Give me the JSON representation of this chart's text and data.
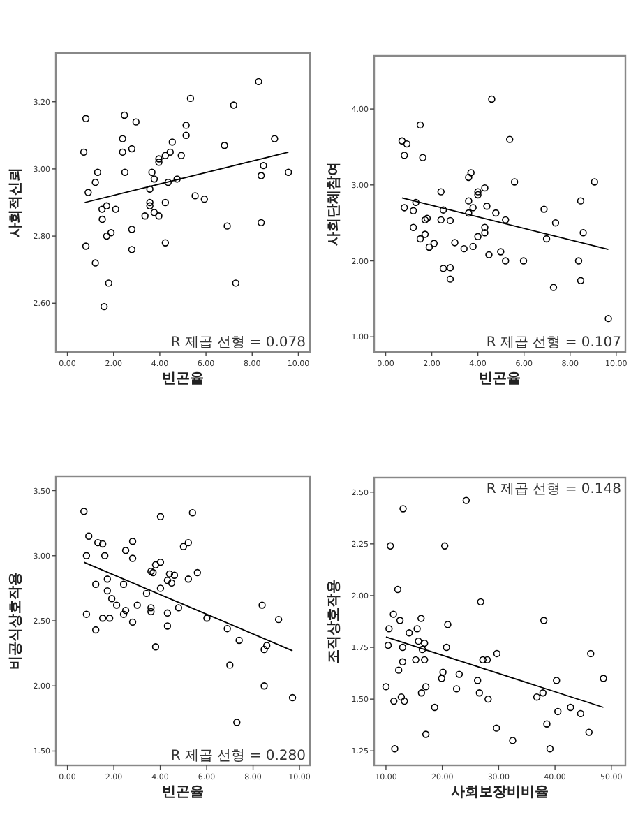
{
  "chart_data": [
    {
      "type": "scatter",
      "xlabel": "빈곤율",
      "ylabel": "사회적신뢰",
      "xlim": [
        -0.5,
        10.5
      ],
      "ylim": [
        2.455,
        3.345
      ],
      "xticks": [
        {
          "value": 0,
          "label": "0.00"
        },
        {
          "value": 2,
          "label": "2.00"
        },
        {
          "value": 4,
          "label": "4.00"
        },
        {
          "value": 6,
          "label": "6.00"
        },
        {
          "value": 8,
          "label": "8.00"
        },
        {
          "value": 10,
          "label": "10.00"
        }
      ],
      "yticks": [
        {
          "value": 2.6,
          "label": "2.60"
        },
        {
          "value": 2.8,
          "label": "2.80"
        },
        {
          "value": 3.0,
          "label": "3.00"
        },
        {
          "value": 3.2,
          "label": "3.20"
        }
      ],
      "annotations": [
        "R 제곱 선형 = 0.078"
      ],
      "series": [
        {
          "marker": "circle",
          "color": "#000000",
          "x": [
            0.8,
            0.71,
            0.9,
            0.8,
            1.21,
            1.31,
            1.21,
            1.5,
            1.51,
            1.7,
            1.7,
            1.89,
            1.79,
            1.59,
            2.09,
            2.47,
            2.39,
            2.39,
            2.49,
            2.79,
            2.97,
            2.79,
            2.79,
            3.36,
            3.57,
            3.57,
            3.57,
            3.66,
            3.76,
            3.76,
            3.96,
            3.96,
            3.96,
            4.24,
            4.24,
            4.24,
            4.36,
            4.45,
            4.54,
            4.75,
            4.93,
            5.14,
            5.14,
            5.33,
            5.53,
            5.93,
            6.8,
            6.92,
            7.2,
            7.29,
            8.28,
            8.39,
            8.39,
            8.49,
            8.97,
            9.57
          ],
          "values": [
            3.15,
            3.05,
            2.93,
            2.77,
            2.72,
            2.99,
            2.96,
            2.88,
            2.85,
            2.89,
            2.8,
            2.81,
            2.66,
            2.59,
            2.88,
            3.16,
            3.09,
            3.05,
            2.99,
            3.06,
            3.14,
            2.82,
            2.76,
            2.86,
            2.94,
            2.9,
            2.89,
            2.99,
            2.97,
            2.87,
            3.03,
            3.02,
            2.86,
            3.04,
            2.9,
            2.78,
            2.96,
            3.05,
            3.08,
            2.97,
            3.04,
            3.13,
            3.1,
            3.21,
            2.92,
            2.91,
            3.07,
            2.83,
            3.19,
            2.66,
            3.26,
            2.98,
            2.84,
            3.01,
            3.09,
            2.99
          ]
        },
        {
          "type": "line",
          "color": "#000000",
          "x": [
            0.75,
            9.57
          ],
          "values": [
            2.9,
            3.05
          ]
        }
      ]
    },
    {
      "type": "scatter",
      "xlabel": "빈곤율",
      "ylabel": "사회단체참여",
      "xlim": [
        -0.5,
        10.4
      ],
      "ylim": [
        0.8,
        4.7
      ],
      "xticks": [
        {
          "value": 0,
          "label": "0.00"
        },
        {
          "value": 2,
          "label": "2.00"
        },
        {
          "value": 4,
          "label": "4.00"
        },
        {
          "value": 6,
          "label": "6.00"
        },
        {
          "value": 8,
          "label": "8.00"
        },
        {
          "value": 10,
          "label": "10.00"
        }
      ],
      "yticks": [
        {
          "value": 1,
          "label": "1.00"
        },
        {
          "value": 2,
          "label": "2.00"
        },
        {
          "value": 3,
          "label": "3.00"
        },
        {
          "value": 4,
          "label": "4.00"
        }
      ],
      "annotations": [
        "R 제곱 선형 = 0.107"
      ],
      "series": [
        {
          "marker": "circle",
          "color": "#000000",
          "x": [
            0.71,
            0.81,
            0.92,
            0.81,
            1.2,
            1.2,
            1.31,
            1.5,
            1.61,
            1.5,
            1.71,
            1.8,
            1.71,
            1.89,
            2.1,
            2.4,
            2.4,
            2.5,
            2.5,
            2.8,
            2.8,
            2.8,
            3.0,
            3.4,
            3.6,
            3.7,
            3.6,
            3.6,
            3.79,
            3.79,
            4.0,
            4.0,
            4.0,
            4.3,
            4.3,
            4.3,
            4.39,
            4.48,
            4.6,
            4.78,
            4.99,
            5.2,
            5.2,
            5.38,
            5.59,
            5.98,
            6.87,
            6.98,
            7.28,
            7.37,
            8.37,
            8.46,
            8.46,
            8.57,
            9.06,
            9.66
          ],
          "values": [
            3.58,
            3.39,
            3.54,
            2.7,
            2.44,
            2.66,
            2.77,
            3.79,
            3.36,
            2.29,
            2.54,
            2.56,
            2.35,
            2.18,
            2.23,
            2.91,
            2.54,
            2.67,
            1.9,
            1.91,
            1.76,
            2.53,
            2.24,
            2.16,
            3.1,
            3.16,
            2.79,
            2.63,
            2.7,
            2.19,
            2.91,
            2.87,
            2.32,
            2.96,
            2.44,
            2.37,
            2.72,
            2.08,
            4.13,
            2.63,
            2.12,
            2.54,
            2.0,
            3.6,
            3.04,
            2.0,
            2.68,
            2.29,
            1.65,
            2.5,
            2.0,
            2.79,
            1.74,
            2.37,
            3.04,
            1.24
          ]
        },
        {
          "type": "line",
          "color": "#000000",
          "x": [
            0.71,
            9.66
          ],
          "values": [
            2.83,
            2.15
          ]
        }
      ]
    },
    {
      "type": "scatter",
      "xlabel": "빈곤율",
      "ylabel": "비공식상호작용",
      "xlim": [
        -0.5,
        10.45
      ],
      "ylim": [
        1.39,
        3.61
      ],
      "xticks": [
        {
          "value": 0,
          "label": "0.00"
        },
        {
          "value": 2,
          "label": "2.00"
        },
        {
          "value": 4,
          "label": "4.00"
        },
        {
          "value": 6,
          "label": "6.00"
        },
        {
          "value": 8,
          "label": "8.00"
        },
        {
          "value": 10,
          "label": "10.00"
        }
      ],
      "yticks": [
        {
          "value": 1.5,
          "label": "1.50"
        },
        {
          "value": 2,
          "label": "2.00"
        },
        {
          "value": 2.5,
          "label": "2.50"
        },
        {
          "value": 3,
          "label": "3.00"
        },
        {
          "value": 3.5,
          "label": "3.50"
        }
      ],
      "annotations": [
        "R 제곱 선형 = 0.280"
      ],
      "series": [
        {
          "marker": "circle",
          "color": "#000000",
          "x": [
            0.71,
            0.92,
            0.82,
            0.82,
            1.22,
            1.22,
            1.31,
            1.52,
            1.52,
            1.61,
            1.72,
            1.72,
            1.82,
            1.91,
            2.12,
            2.42,
            2.42,
            2.51,
            2.51,
            2.81,
            2.81,
            2.81,
            3.01,
            3.41,
            3.6,
            3.69,
            3.6,
            3.6,
            3.8,
            3.8,
            4.01,
            4.01,
            4.01,
            4.31,
            4.31,
            4.31,
            4.4,
            4.49,
            4.61,
            4.79,
            5.0,
            5.21,
            5.21,
            5.39,
            5.6,
            6.01,
            6.89,
            7.0,
            7.3,
            7.4,
            8.39,
            8.48,
            8.48,
            8.59,
            9.1,
            9.7
          ],
          "values": [
            3.34,
            3.15,
            3.0,
            2.55,
            2.78,
            2.43,
            3.1,
            3.09,
            2.52,
            3.0,
            2.82,
            2.73,
            2.52,
            2.67,
            2.62,
            2.78,
            2.55,
            3.04,
            2.58,
            3.11,
            2.98,
            2.49,
            2.62,
            2.71,
            2.88,
            2.87,
            2.6,
            2.57,
            2.93,
            2.3,
            3.3,
            2.95,
            2.75,
            2.81,
            2.56,
            2.46,
            2.86,
            2.79,
            2.85,
            2.6,
            3.07,
            3.1,
            2.82,
            3.33,
            2.87,
            2.52,
            2.44,
            2.16,
            1.72,
            2.35,
            2.62,
            2.28,
            2.0,
            2.31,
            2.51,
            1.91
          ]
        },
        {
          "type": "line",
          "color": "#000000",
          "x": [
            0.71,
            9.7
          ],
          "values": [
            2.95,
            2.27
          ]
        }
      ]
    },
    {
      "type": "scatter",
      "xlabel": "사회보장비비율",
      "ylabel": "조직상호작용",
      "xlim": [
        7.9,
        52.5
      ],
      "ylim": [
        1.18,
        2.57
      ],
      "xticks": [
        {
          "value": 10,
          "label": "10.00"
        },
        {
          "value": 20,
          "label": "20.00"
        },
        {
          "value": 30,
          "label": "30.00"
        },
        {
          "value": 40,
          "label": "40.00"
        },
        {
          "value": 50,
          "label": "50.00"
        }
      ],
      "yticks": [
        {
          "value": 1.25,
          "label": "1.25"
        },
        {
          "value": 1.5,
          "label": "1.50"
        },
        {
          "value": 1.75,
          "label": "1.75"
        },
        {
          "value": 2,
          "label": "2.00"
        },
        {
          "value": 2.25,
          "label": "2.25"
        },
        {
          "value": 2.5,
          "label": "2.50"
        }
      ],
      "annotations": [
        "R 제곱 선형 = 0.148"
      ],
      "series": [
        {
          "marker": "circle",
          "color": "#000000",
          "x": [
            10.0,
            10.39,
            10.54,
            10.78,
            11.32,
            11.4,
            11.56,
            12.1,
            12.26,
            12.49,
            12.72,
            12.96,
            12.96,
            13.04,
            13.27,
            14.12,
            15.29,
            15.53,
            15.76,
            16.23,
            16.3,
            16.46,
            16.85,
            16.85,
            17.08,
            17.08,
            18.64,
            19.88,
            20.12,
            20.43,
            20.74,
            20.97,
            22.53,
            23.0,
            24.24,
            26.26,
            26.58,
            26.81,
            27.2,
            27.98,
            28.13,
            29.61,
            29.69,
            32.49,
            36.77,
            37.86,
            38.02,
            38.56,
            39.11,
            40.27,
            40.51,
            42.76,
            44.55,
            46.03,
            46.34,
            48.6
          ],
          "values": [
            1.56,
            1.76,
            1.84,
            2.24,
            1.91,
            1.49,
            1.26,
            2.03,
            1.64,
            1.88,
            1.51,
            1.75,
            1.68,
            2.42,
            1.49,
            1.82,
            1.69,
            1.84,
            1.78,
            1.89,
            1.53,
            1.74,
            1.77,
            1.69,
            1.56,
            1.33,
            1.46,
            1.6,
            1.63,
            2.24,
            1.75,
            1.86,
            1.55,
            1.62,
            2.46,
            1.59,
            1.53,
            1.97,
            1.69,
            1.69,
            1.5,
            1.36,
            1.72,
            1.3,
            1.51,
            1.53,
            1.88,
            1.38,
            1.26,
            1.59,
            1.44,
            1.46,
            1.43,
            1.34,
            1.72,
            1.6
          ]
        },
        {
          "type": "line",
          "color": "#000000",
          "x": [
            10.0,
            48.6
          ],
          "values": [
            1.8,
            1.46
          ]
        }
      ]
    }
  ]
}
